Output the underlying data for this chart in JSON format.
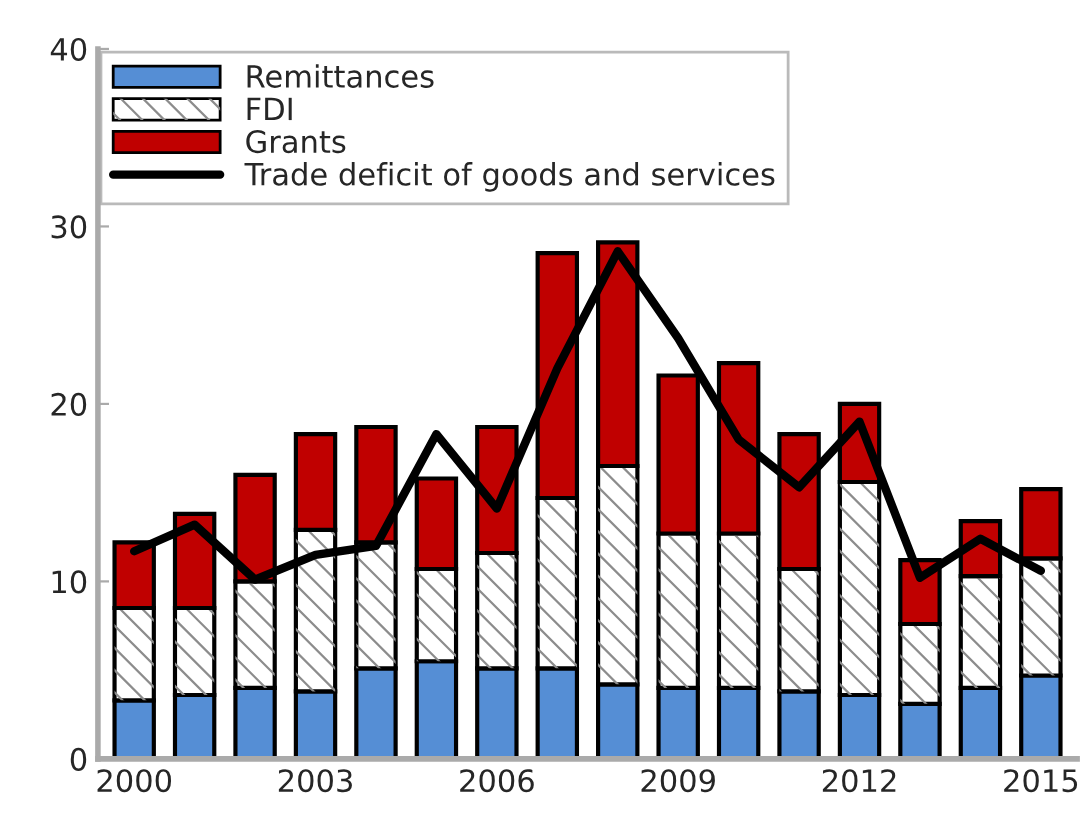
{
  "chart_data": {
    "type": "bar",
    "stacked": true,
    "categories": [
      "2000",
      null,
      null,
      "2003",
      null,
      null,
      "2006",
      null,
      null,
      "2009",
      null,
      null,
      "2012",
      null,
      null,
      "2015"
    ],
    "series": [
      {
        "name": "Remittances",
        "color": "#558ed5",
        "values": [
          3.3,
          3.6,
          4.0,
          3.8,
          5.1,
          5.5,
          5.1,
          5.1,
          4.2,
          4.0,
          4.0,
          3.8,
          3.6,
          3.1,
          4.0,
          4.7
        ]
      },
      {
        "name": "FDI",
        "color": "#ffffff",
        "values": [
          5.2,
          4.9,
          6.0,
          9.1,
          7.1,
          5.2,
          6.5,
          9.6,
          12.3,
          8.7,
          8.7,
          6.9,
          12.0,
          4.5,
          6.3,
          6.6
        ]
      },
      {
        "name": "Grants",
        "color": "#c00000",
        "values": [
          3.7,
          5.3,
          6.0,
          5.4,
          6.5,
          5.1,
          7.1,
          13.8,
          12.6,
          8.9,
          9.6,
          7.6,
          4.4,
          3.6,
          3.1,
          3.9
        ]
      },
      {
        "name": "Trade deficit of goods and services",
        "type": "line",
        "color": "#000000",
        "values": [
          11.7,
          13.2,
          10.1,
          11.5,
          12.0,
          18.3,
          14.1,
          22.0,
          28.6,
          23.7,
          18.0,
          15.3,
          19.0,
          10.2,
          12.4,
          10.6
        ]
      }
    ],
    "ylim": [
      0,
      40
    ],
    "yticks": [
      0,
      10,
      20,
      30,
      40
    ],
    "grid": false,
    "legend": "top left",
    "line_style": "solid",
    "marker": "none"
  }
}
